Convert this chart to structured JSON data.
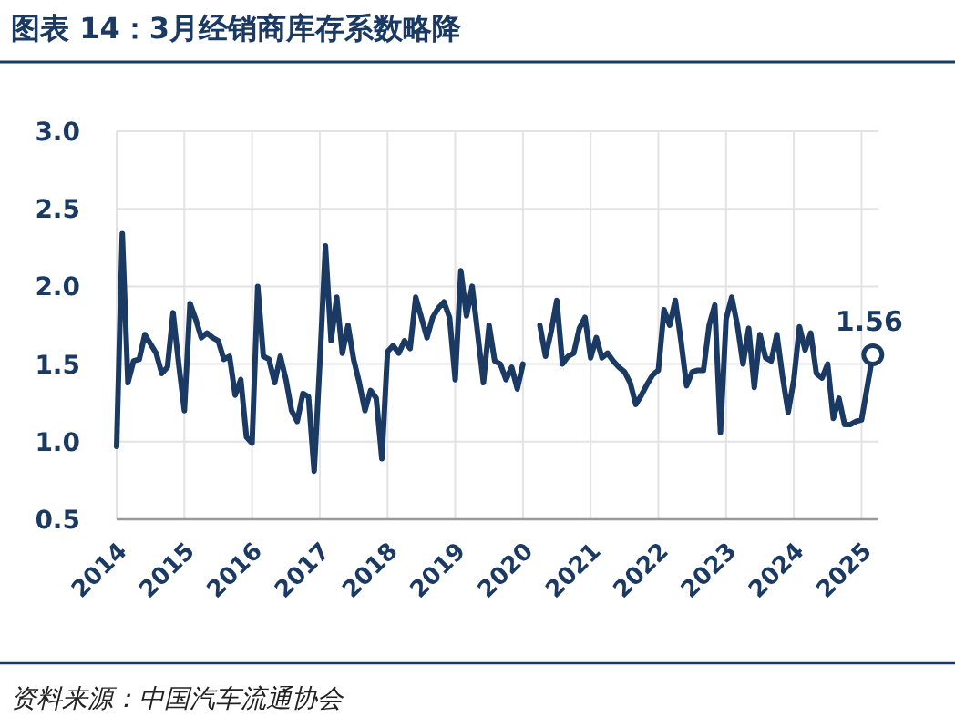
{
  "chart_data": {
    "type": "line",
    "title": "图表 14：3月经销商库存系数略降",
    "annotations": [
      {
        "text": "1.56",
        "x": "2025-03",
        "y": 1.56
      },
      "资料来源：中国汽车流通协会"
    ],
    "x": [
      "2014-01",
      "2014-02",
      "2014-03",
      "2014-04",
      "2014-05",
      "2014-06",
      "2014-07",
      "2014-08",
      "2014-09",
      "2014-10",
      "2014-11",
      "2014-12",
      "2015-01",
      "2015-02",
      "2015-03",
      "2015-04",
      "2015-05",
      "2015-06",
      "2015-07",
      "2015-08",
      "2015-09",
      "2015-10",
      "2015-11",
      "2015-12",
      "2016-01",
      "2016-02",
      "2016-03",
      "2016-04",
      "2016-05",
      "2016-06",
      "2016-07",
      "2016-08",
      "2016-09",
      "2016-10",
      "2016-11",
      "2016-12",
      "2017-01",
      "2017-02",
      "2017-03",
      "2017-04",
      "2017-05",
      "2017-06",
      "2017-07",
      "2017-08",
      "2017-09",
      "2017-10",
      "2017-11",
      "2017-12",
      "2018-01",
      "2018-02",
      "2018-03",
      "2018-04",
      "2018-05",
      "2018-06",
      "2018-07",
      "2018-08",
      "2018-09",
      "2018-10",
      "2018-11",
      "2018-12",
      "2019-01",
      "2019-02",
      "2019-03",
      "2019-04",
      "2019-05",
      "2019-06",
      "2019-07",
      "2019-08",
      "2019-09",
      "2019-10",
      "2019-11",
      "2019-12",
      "2020-01",
      "2020-02",
      "2020-03",
      "2020-04",
      "2020-05",
      "2020-06",
      "2020-07",
      "2020-08",
      "2020-09",
      "2020-10",
      "2020-11",
      "2020-12",
      "2021-01",
      "2021-02",
      "2021-03",
      "2021-04",
      "2021-05",
      "2021-06",
      "2021-07",
      "2021-08",
      "2021-09",
      "2021-10",
      "2021-11",
      "2021-12",
      "2022-01",
      "2022-02",
      "2022-03",
      "2022-04",
      "2022-05",
      "2022-06",
      "2022-07",
      "2022-08",
      "2022-09",
      "2022-10",
      "2022-11",
      "2022-12",
      "2023-01",
      "2023-02",
      "2023-03",
      "2023-04",
      "2023-05",
      "2023-06",
      "2023-07",
      "2023-08",
      "2023-09",
      "2023-10",
      "2023-11",
      "2023-12",
      "2024-01",
      "2024-02",
      "2024-03",
      "2024-04",
      "2024-05",
      "2024-06",
      "2024-07",
      "2024-08",
      "2024-09",
      "2024-10",
      "2024-11",
      "2024-12",
      "2025-01",
      "2025-03"
    ],
    "series": [
      {
        "color": "#1b3a63",
        "values": [
          0.97,
          2.34,
          1.38,
          1.52,
          1.53,
          1.69,
          1.63,
          1.57,
          1.44,
          1.48,
          1.83,
          1.5,
          1.2,
          1.89,
          1.79,
          1.67,
          1.7,
          1.67,
          1.65,
          1.53,
          1.55,
          1.3,
          1.4,
          1.03,
          0.99,
          2.0,
          1.55,
          1.53,
          1.38,
          1.55,
          1.4,
          1.2,
          1.13,
          1.31,
          1.29,
          0.81,
          1.5,
          2.26,
          1.65,
          1.93,
          1.57,
          1.75,
          1.53,
          1.38,
          1.2,
          1.33,
          1.28,
          0.89,
          1.58,
          1.62,
          1.57,
          1.65,
          1.6,
          1.93,
          1.8,
          1.67,
          1.8,
          1.86,
          1.9,
          1.8,
          1.4,
          2.1,
          1.81,
          2.0,
          1.69,
          1.38,
          1.75,
          1.52,
          1.5,
          1.4,
          1.48,
          1.34,
          1.5,
          null,
          null,
          1.75,
          1.55,
          1.71,
          1.91,
          1.5,
          1.55,
          1.57,
          1.73,
          1.8,
          1.54,
          1.67,
          1.54,
          1.57,
          1.52,
          1.48,
          1.45,
          1.38,
          1.24,
          1.3,
          1.37,
          1.43,
          1.46,
          1.85,
          1.75,
          1.91,
          1.65,
          1.36,
          1.45,
          1.46,
          1.46,
          1.75,
          1.88,
          1.06,
          1.79,
          1.93,
          1.75,
          1.5,
          1.73,
          1.35,
          1.69,
          1.54,
          1.52,
          1.69,
          1.42,
          1.19,
          1.4,
          1.74,
          1.59,
          1.7,
          1.44,
          1.41,
          1.5,
          1.15,
          1.28,
          1.11,
          1.11,
          1.13,
          1.14,
          1.56
        ]
      }
    ],
    "xlim": [
      "2014-01",
      "2025-04"
    ],
    "xticks": [
      {
        "value": "2014",
        "label": "2014"
      },
      {
        "value": "2015",
        "label": "2015"
      },
      {
        "value": "2016",
        "label": "2016"
      },
      {
        "value": "2017",
        "label": "2017"
      },
      {
        "value": "2018",
        "label": "2018"
      },
      {
        "value": "2019",
        "label": "2019"
      },
      {
        "value": "2020",
        "label": "2020"
      },
      {
        "value": "2021",
        "label": "2021"
      },
      {
        "value": "2022",
        "label": "2022"
      },
      {
        "value": "2023",
        "label": "2023"
      },
      {
        "value": "2024",
        "label": "2024"
      },
      {
        "value": "2025",
        "label": "2025"
      }
    ],
    "ylim": [
      0.5,
      3.0
    ],
    "yticks": [
      {
        "value": 0.5,
        "label": "0.5"
      },
      {
        "value": 1,
        "label": "1.0"
      },
      {
        "value": 1.5,
        "label": "1.5"
      },
      {
        "value": 2,
        "label": "2.0"
      },
      {
        "value": 2.5,
        "label": "2.5"
      },
      {
        "value": 3,
        "label": "3.0"
      }
    ],
    "grid": true,
    "marker": "none",
    "line_style": "solid"
  }
}
